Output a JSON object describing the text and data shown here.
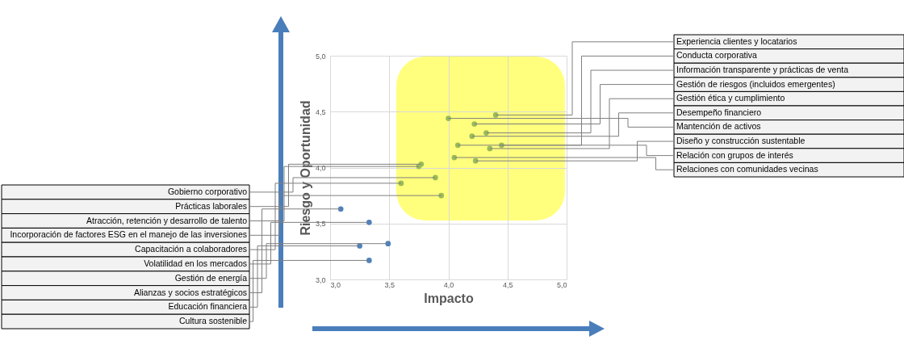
{
  "chart_data": {
    "type": "scatter",
    "xlabel": "Impacto",
    "ylabel": "Riesgo y Oportunidad",
    "xlim": [
      3,
      5
    ],
    "ylim": [
      3,
      5
    ],
    "xticks": [
      {
        "value": 3,
        "label": "3,0"
      },
      {
        "value": 3.5,
        "label": "3,5"
      },
      {
        "value": 4,
        "label": "4,0"
      },
      {
        "value": 4.5,
        "label": "4,5"
      },
      {
        "value": 5,
        "label": "5,0"
      }
    ],
    "yticks": [
      {
        "value": 3,
        "label": "3,0"
      },
      {
        "value": 3.5,
        "label": "3,5"
      },
      {
        "value": 4,
        "label": "4,0"
      },
      {
        "value": 4.5,
        "label": "4,5"
      },
      {
        "value": 5,
        "label": "5,0"
      }
    ],
    "grid": true,
    "marker": "circle",
    "series": [
      {
        "color": "#9bbb59",
        "x": [
          4.4,
          4.45,
          4.32,
          4.22,
          4.35,
          4.2,
          4.0,
          4.23,
          4.08,
          4.05,
          3.89,
          3.77,
          3.75,
          3.94,
          3.6
        ],
        "values": [
          4.47,
          4.2,
          4.31,
          4.39,
          4.17,
          4.28,
          4.44,
          4.06,
          4.2,
          4.09,
          3.91,
          4.03,
          4.01,
          3.75,
          3.86
        ]
      },
      {
        "color": "#4f81bd",
        "x": [
          3.33,
          3.49,
          3.09,
          3.25,
          3.33
        ],
        "values": [
          3.51,
          3.32,
          3.63,
          3.3,
          3.17
        ]
      }
    ],
    "annotations": [
      {
        "text": "Experiencia clientes y locatarios",
        "x": 4.4,
        "y": 4.47
      },
      {
        "text": "Conducta corporativa",
        "x": 4.45,
        "y": 4.2
      },
      {
        "text": "Información transparente y prácticas de venta",
        "x": 4.32,
        "y": 4.31
      },
      {
        "text": "Gestión de riesgos (incluidos emergentes)",
        "x": 4.22,
        "y": 4.39
      },
      {
        "text": "Gestión ética y cumplimiento",
        "x": 4.35,
        "y": 4.17
      },
      {
        "text": "Desempeño financiero",
        "x": 4.2,
        "y": 4.28
      },
      {
        "text": "Mantención de activos",
        "x": 4.0,
        "y": 4.44
      },
      {
        "text": "Diseño y construcción sustentable",
        "x": 4.23,
        "y": 4.06
      },
      {
        "text": "Relación con grupos de interés",
        "x": 4.08,
        "y": 4.2
      },
      {
        "text": "Relaciones con comunidades vecinas",
        "x": 4.05,
        "y": 4.09
      },
      {
        "text": "Gobierno corporativo",
        "x": 3.89,
        "y": 3.91
      },
      {
        "text": "Prácticas laborales",
        "x": 3.77,
        "y": 4.03
      },
      {
        "text": "Atracción, retención y desarrollo de talento",
        "x": 3.75,
        "y": 4.01
      },
      {
        "text": "Incorporación de factores ESG en el manejo de las inversiones",
        "x": 3.94,
        "y": 3.75
      },
      {
        "text": "Capacitación a colaboradores",
        "x": 3.6,
        "y": 3.86
      },
      {
        "text": "Volatilidad en los mercados",
        "x": 3.33,
        "y": 3.51
      },
      {
        "text": "Gestión de energía",
        "x": 3.49,
        "y": 3.32
      },
      {
        "text": "Alianzas y socios estratégicos",
        "x": 3.09,
        "y": 3.63
      },
      {
        "text": "Educación financiera",
        "x": 3.25,
        "y": 3.3
      },
      {
        "text": "Cultura sostenible",
        "x": 3.33,
        "y": 3.17
      }
    ]
  }
}
